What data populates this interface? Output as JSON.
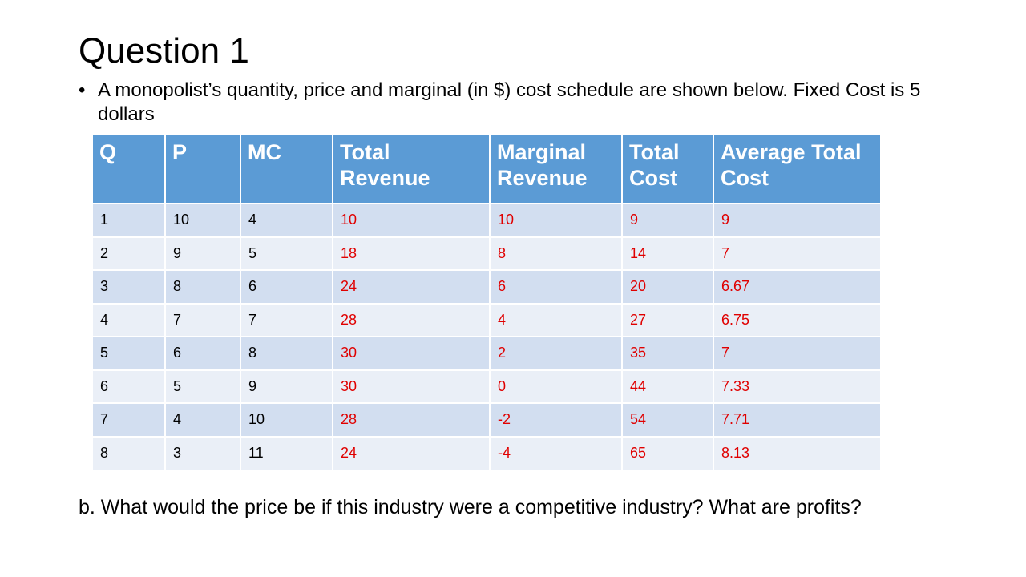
{
  "title": "Question 1",
  "bullet": {
    "marker": "•",
    "text": "A monopolist’s quantity, price and marginal (in $) cost schedule are shown below. Fixed Cost is 5 dollars"
  },
  "table": {
    "columns": [
      "Q",
      "P",
      "MC",
      "Total Revenue",
      "Marginal Revenue",
      "Total Cost",
      "Average Total Cost"
    ],
    "rows": [
      [
        "1",
        "10",
        "4",
        "10",
        "10",
        "9",
        "9"
      ],
      [
        "2",
        "9",
        "5",
        "18",
        "8",
        "14",
        "7"
      ],
      [
        "3",
        "8",
        "6",
        "24",
        "6",
        "20",
        "6.67"
      ],
      [
        "4",
        "7",
        "7",
        "28",
        "4",
        "27",
        "6.75"
      ],
      [
        "5",
        "6",
        "8",
        "30",
        "2",
        "35",
        "7"
      ],
      [
        "6",
        "5",
        "9",
        "30",
        "0",
        "44",
        "7.33"
      ],
      [
        "7",
        "4",
        "10",
        "28",
        "-2",
        "54",
        "7.71"
      ],
      [
        "8",
        "3",
        "11",
        "24",
        "-4",
        "65",
        "8.13"
      ]
    ],
    "colors": {
      "header_bg": "#5b9bd5",
      "row_odd_bg": "#d2def0",
      "row_even_bg": "#eaeff7",
      "given_text": "#000000",
      "answer_text": "#e00000"
    }
  },
  "question_b": "b. What would the price be if this industry were a competitive industry? What are profits?"
}
